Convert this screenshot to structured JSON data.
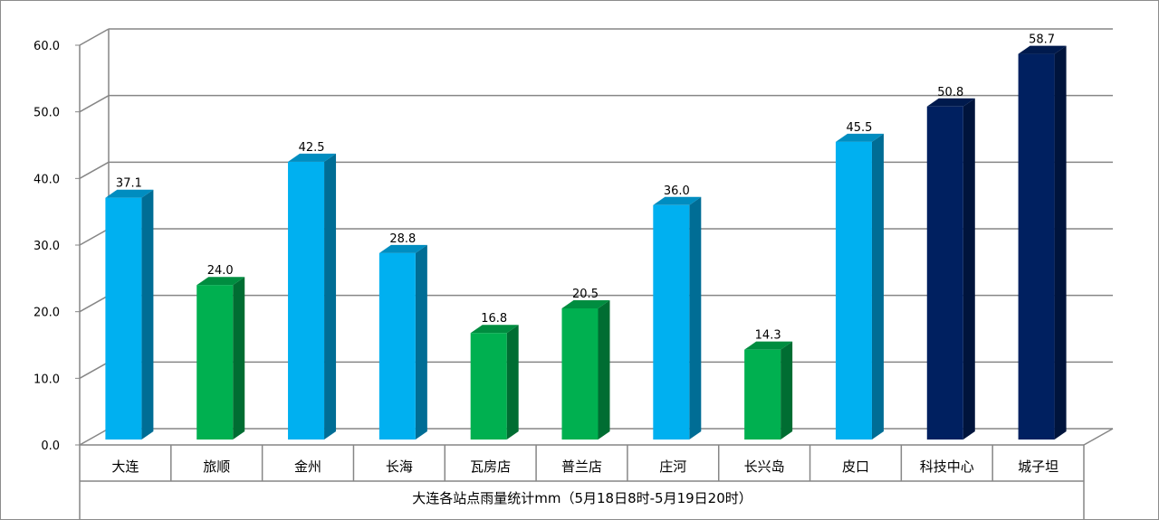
{
  "chart_data": {
    "type": "bar",
    "categories": [
      "大连",
      "旅顺",
      "金州",
      "长海",
      "瓦房店",
      "普兰店",
      "庄河",
      "长兴岛",
      "皮口",
      "科技中心",
      "城子坦"
    ],
    "values": [
      37.1,
      24.0,
      42.5,
      28.8,
      16.8,
      20.5,
      36.0,
      14.3,
      45.5,
      50.8,
      58.7
    ],
    "value_labels": [
      "37.1",
      "24.0",
      "42.5",
      "28.8",
      "16.8",
      "20.5",
      "36.0",
      "14.3",
      "45.5",
      "50.8",
      "58.7"
    ],
    "bar_colors": [
      "#00b0f0",
      "#00b050",
      "#00b0f0",
      "#00b0f0",
      "#00b050",
      "#00b050",
      "#00b0f0",
      "#00b050",
      "#00b0f0",
      "#002060",
      "#002060"
    ],
    "xlabel": "大连各站点雨量统计mm（5月18日8时-5月19日20时）",
    "ylabel": "",
    "ylim": [
      0,
      60
    ],
    "yticks": [
      "0.0",
      "10.0",
      "20.0",
      "30.0",
      "40.0",
      "50.0",
      "60.0"
    ],
    "grid": true,
    "legend": "none",
    "style": "3d-column"
  }
}
